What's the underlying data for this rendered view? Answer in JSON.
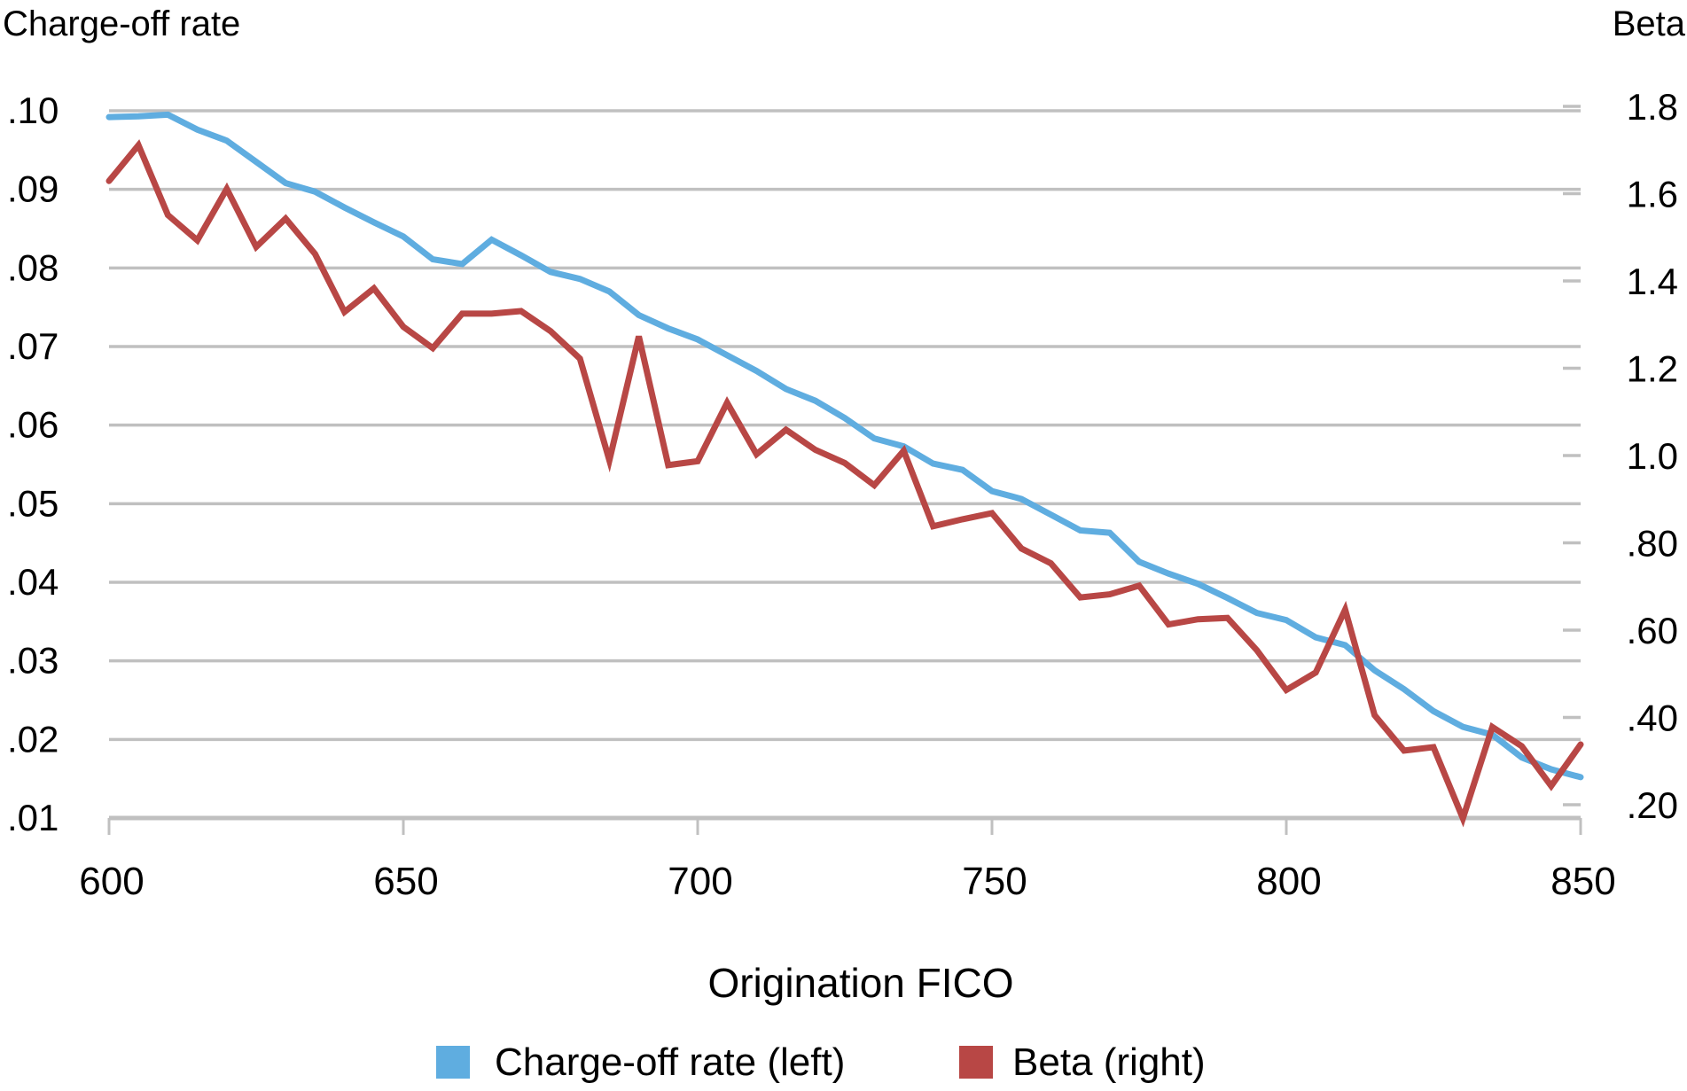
{
  "chart_data": {
    "type": "line",
    "title": "",
    "xlabel": "Origination FICO",
    "ylabel_left": "Charge-off rate",
    "ylabel_right": "Beta",
    "xlim": [
      600,
      850
    ],
    "ylim_left": [
      0.01,
      0.1
    ],
    "ylim_right": [
      0.168,
      1.8
    ],
    "x_ticks": [
      "600",
      "650",
      "700",
      "750",
      "800",
      "850"
    ],
    "x_tick_values": [
      600,
      650,
      700,
      750,
      800,
      850
    ],
    "y_left_ticks": [
      ".10",
      ".09",
      ".08",
      ".07",
      ".06",
      ".05",
      ".04",
      ".03",
      ".02",
      ".01"
    ],
    "y_left_tick_values": [
      0.1,
      0.09,
      0.08,
      0.07,
      0.06,
      0.05,
      0.04,
      0.03,
      0.02,
      0.01
    ],
    "y_right_ticks": [
      "1.8",
      "1.6",
      "1.4",
      "1.2",
      "1.0",
      ".80",
      ".60",
      ".40",
      ".20"
    ],
    "y_right_tick_values": [
      1.8,
      1.6,
      1.4,
      1.2,
      1.0,
      0.8,
      0.6,
      0.4,
      0.2
    ],
    "grid": true,
    "legend_position": "bottom-center",
    "x": [
      600,
      605,
      610,
      615,
      620,
      625,
      630,
      635,
      640,
      645,
      650,
      655,
      660,
      665,
      670,
      675,
      680,
      685,
      690,
      695,
      700,
      705,
      710,
      715,
      720,
      725,
      730,
      735,
      740,
      745,
      750,
      755,
      760,
      765,
      770,
      775,
      780,
      785,
      790,
      795,
      800,
      805,
      810,
      815,
      820,
      825,
      830,
      835,
      840,
      845,
      850
    ],
    "series": [
      {
        "name": "Charge-off rate (left)",
        "axis": "left",
        "color": "#5FADE0",
        "values": [
          0.0992,
          0.0993,
          0.0995,
          0.0976,
          0.0962,
          0.0935,
          0.0908,
          0.0897,
          0.0877,
          0.0858,
          0.084,
          0.0811,
          0.0805,
          0.0836,
          0.0816,
          0.0795,
          0.0786,
          0.077,
          0.074,
          0.0723,
          0.0709,
          0.0689,
          0.0669,
          0.0646,
          0.0631,
          0.0609,
          0.0583,
          0.0573,
          0.0551,
          0.0543,
          0.0516,
          0.0506,
          0.0486,
          0.0466,
          0.0463,
          0.0426,
          0.0411,
          0.0398,
          0.038,
          0.0361,
          0.0352,
          0.033,
          0.032,
          0.0288,
          0.0264,
          0.0236,
          0.0216,
          0.0206,
          0.0177,
          0.0162,
          0.0152
        ]
      },
      {
        "name": "Beta (right)",
        "axis": "right",
        "color": "#B84745",
        "values": [
          1.629,
          1.711,
          1.551,
          1.493,
          1.611,
          1.478,
          1.543,
          1.462,
          1.329,
          1.383,
          1.295,
          1.246,
          1.325,
          1.325,
          1.331,
          1.285,
          1.222,
          0.989,
          1.273,
          0.978,
          0.987,
          1.121,
          1.003,
          1.059,
          1.013,
          0.983,
          0.932,
          1.011,
          0.838,
          0.854,
          0.868,
          0.787,
          0.753,
          0.675,
          0.682,
          0.702,
          0.613,
          0.625,
          0.628,
          0.554,
          0.463,
          0.503,
          0.647,
          0.405,
          0.324,
          0.332,
          0.169,
          0.378,
          0.334,
          0.243,
          0.338
        ]
      }
    ]
  },
  "colors": {
    "grid": "#C0C0C0",
    "text": "#000000"
  }
}
